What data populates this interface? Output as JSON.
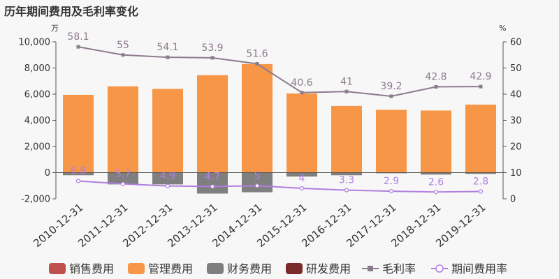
{
  "chart_data": {
    "type": "bar",
    "title": "历年期间费用及毛利率变化",
    "categories": [
      "2010-12-31",
      "2011-12-31",
      "2012-12-31",
      "2013-12-31",
      "2014-12-31",
      "2015-12-31",
      "2016-12-31",
      "2017-12-31",
      "2018-12-31",
      "2019-12-31"
    ],
    "y_left": {
      "unit": "万",
      "ticks": [
        "10,000",
        "8,000",
        "6,000",
        "4,000",
        "2,000",
        "0",
        "-2,000"
      ],
      "range": [
        -2000,
        10000
      ]
    },
    "y_right": {
      "unit": "%",
      "ticks": [
        "60",
        "50",
        "40",
        "30",
        "20",
        "10",
        "0"
      ],
      "range": [
        0,
        60
      ]
    },
    "series": [
      {
        "name": "销售费用",
        "kind": "bar",
        "color": "#c0504d",
        "values": [
          0,
          0,
          0,
          0,
          0,
          0,
          0,
          0,
          0,
          0
        ]
      },
      {
        "name": "管理费用",
        "kind": "bar",
        "color": "#f79646",
        "values": [
          5950,
          6600,
          6400,
          7450,
          8300,
          6050,
          5100,
          4800,
          4750,
          5200
        ]
      },
      {
        "name": "财务费用",
        "kind": "bar",
        "color": "#7f7f7f",
        "values": [
          -200,
          -900,
          -900,
          -1600,
          -1500,
          -300,
          -200,
          -50,
          -150,
          -100
        ]
      },
      {
        "name": "研发费用",
        "kind": "bar",
        "color": "#7b2a2a",
        "values": [
          0,
          0,
          0,
          0,
          0,
          0,
          0,
          0,
          0,
          0
        ]
      },
      {
        "name": "毛利率",
        "kind": "line",
        "axis": "right",
        "color": "#8c7b8c",
        "values": [
          58.1,
          55,
          54.1,
          53.9,
          51.6,
          40.6,
          41,
          39.2,
          42.8,
          42.9
        ],
        "labels": [
          "58.1",
          "55",
          "54.1",
          "53.9",
          "51.6",
          "40.6",
          "41",
          "39.2",
          "42.8",
          "42.9"
        ]
      },
      {
        "name": "期间费用率",
        "kind": "line",
        "axis": "right",
        "color": "#b07fe0",
        "values": [
          6.8,
          5.7,
          4.9,
          4.7,
          5,
          4,
          3.3,
          2.9,
          2.6,
          2.8
        ],
        "labels": [
          "6.8",
          "5.7",
          "4.9",
          "4.7",
          "5",
          "4",
          "3.3",
          "2.9",
          "2.6",
          "2.8"
        ]
      }
    ],
    "legend_position": "bottom",
    "grid": false
  }
}
